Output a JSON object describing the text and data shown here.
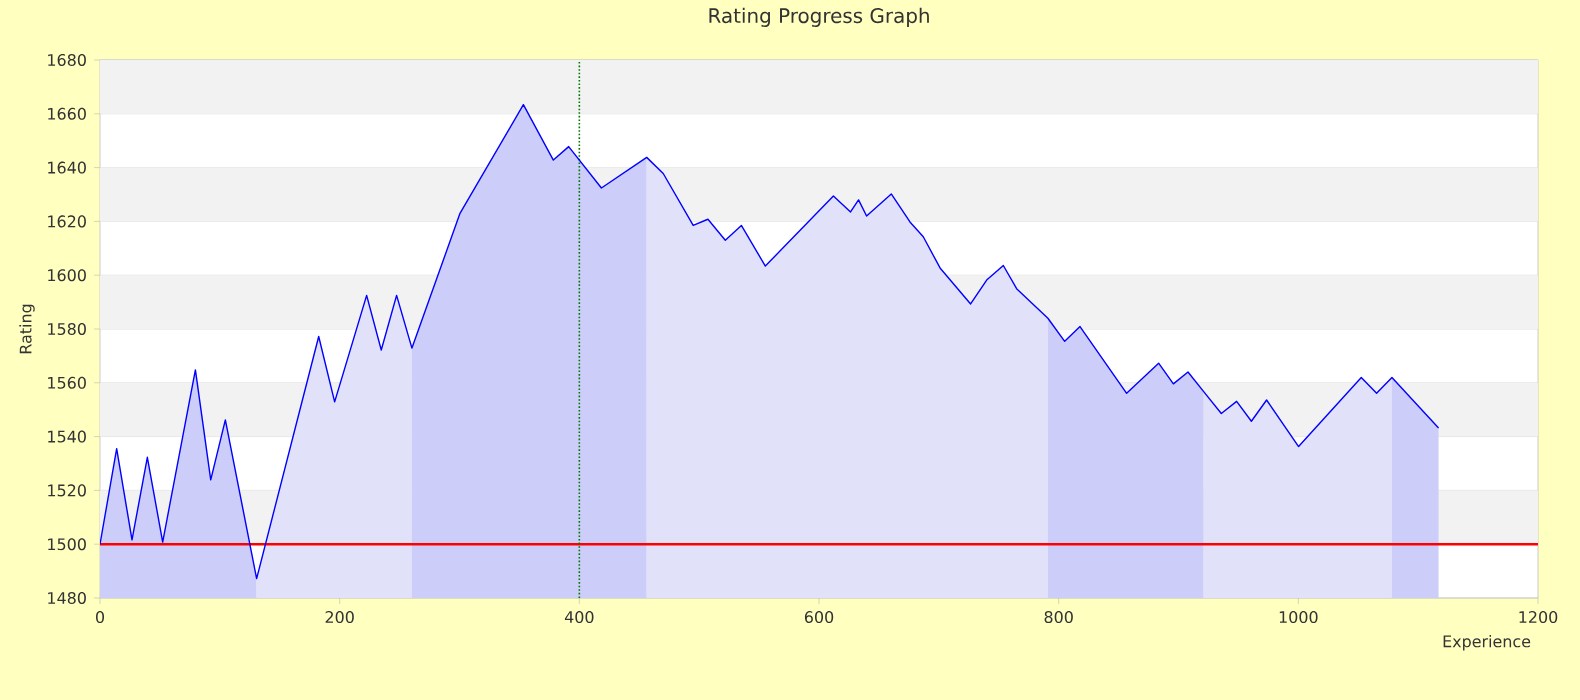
{
  "chart_data": {
    "type": "line",
    "title": "Rating Progress Graph",
    "xlabel": "Experience",
    "ylabel": "Rating",
    "xlim": [
      0,
      1200
    ],
    "xticks": [
      0,
      200,
      400,
      600,
      800,
      1000,
      1200
    ],
    "ylim": [
      1480,
      1680
    ],
    "yticks": [
      1480,
      1500,
      1520,
      1540,
      1560,
      1580,
      1600,
      1620,
      1640,
      1660,
      1680
    ],
    "grid": "y",
    "marker": "none",
    "series": [
      {
        "type": "area",
        "color": "#cdcdfa",
        "x": [
          0,
          13.9,
          26.7,
          39.5,
          52.3,
          79.6,
          92.4,
          104.6,
          130.7
        ],
        "values": [
          1500,
          1535.5,
          1501.6,
          1532.3,
          1500.8,
          1564.8,
          1523.9,
          1546.2,
          1487.2
        ]
      },
      {
        "type": "area",
        "color": "#e1e1fa",
        "x": [
          130.7,
          182.5,
          195.8,
          222.5,
          234.7,
          247.5,
          260.3
        ],
        "values": [
          1487.2,
          1577.2,
          1552.9,
          1592.5,
          1572.2,
          1592.5,
          1572.9
        ]
      },
      {
        "type": "area",
        "color": "#cdcdfa",
        "x": [
          260.3,
          300.4,
          353.3,
          378.3,
          391.1,
          418.4,
          456.2
        ],
        "values": [
          1572.9,
          1623,
          1663.4,
          1642.8,
          1647.8,
          1632.4,
          1643.8
        ]
      },
      {
        "type": "area",
        "color": "#e1e1fa",
        "x": [
          456.2,
          470,
          495,
          507.3,
          521.8,
          535.2,
          555.2,
          612,
          626.3,
          633,
          639.7,
          660.3,
          675.9,
          687,
          701,
          726.5,
          739.9,
          753.8,
          764.9,
          791
        ],
        "values": [
          1643.8,
          1637.8,
          1618.5,
          1620.8,
          1613,
          1618.5,
          1603.4,
          1629.4,
          1623.5,
          1628,
          1622,
          1630.2,
          1619.8,
          1614.3,
          1602.7,
          1589.3,
          1598.2,
          1603.6,
          1595,
          1584
        ]
      },
      {
        "type": "area",
        "color": "#cdcdfa",
        "x": [
          791,
          805,
          817.8,
          856.7,
          883.4,
          895.7,
          907.9,
          921
        ],
        "values": [
          1584,
          1575.4,
          1580.9,
          1556.1,
          1567.3,
          1559.6,
          1564,
          1556.7
        ]
      },
      {
        "type": "area",
        "color": "#e1e1fa",
        "x": [
          921,
          935.7,
          948.5,
          960.8,
          973.5,
          1000.2,
          1052.5,
          1065.3,
          1078.1
        ],
        "values": [
          1556.7,
          1548.6,
          1553.1,
          1545.7,
          1553.6,
          1536.3,
          1562,
          1556.1,
          1562
        ]
      },
      {
        "type": "area",
        "color": "#cdcdfa",
        "x": [
          1078.1,
          1117
        ],
        "values": [
          1562,
          1543.2
        ]
      },
      {
        "type": "line",
        "color": "#0000ff",
        "x": [
          0,
          13.9,
          26.7,
          39.5,
          52.3,
          79.6,
          92.4,
          104.6,
          130.7,
          182.5,
          195.8,
          222.5,
          234.7,
          247.5,
          260.3,
          300.4,
          353.3,
          378.3,
          391.1,
          418.4,
          456.2,
          470,
          495,
          507.3,
          521.8,
          535.2,
          555.2,
          612,
          626.3,
          633,
          639.7,
          660.3,
          675.9,
          687,
          701,
          726.5,
          739.9,
          753.8,
          764.9,
          791,
          805,
          817.8,
          856.7,
          883.4,
          895.7,
          907.9,
          921,
          935.7,
          948.5,
          960.8,
          973.5,
          1000.2,
          1052.5,
          1065.3,
          1078.1,
          1117
        ],
        "values": [
          1500,
          1535.5,
          1501.6,
          1532.3,
          1500.8,
          1564.8,
          1523.9,
          1546.2,
          1487.2,
          1577.2,
          1552.9,
          1592.5,
          1572.2,
          1592.5,
          1572.9,
          1623,
          1663.4,
          1642.8,
          1647.8,
          1632.4,
          1643.8,
          1637.8,
          1618.5,
          1620.8,
          1613,
          1618.5,
          1603.4,
          1629.4,
          1623.5,
          1628,
          1622,
          1630.2,
          1619.8,
          1614.3,
          1602.7,
          1589.3,
          1598.2,
          1603.6,
          1595,
          1584,
          1575.4,
          1580.9,
          1556.1,
          1567.3,
          1559.6,
          1564,
          1556.7,
          1548.6,
          1553.1,
          1545.7,
          1553.6,
          1536.3,
          1562,
          1556.1,
          1562,
          1543.2
        ]
      }
    ],
    "ref_lines": [
      {
        "axis": "y",
        "value": 1500,
        "color": "#ff0000",
        "line_style": "solid"
      },
      {
        "axis": "x",
        "value": 400,
        "color": "#007700",
        "line_style": "dotted"
      }
    ]
  }
}
